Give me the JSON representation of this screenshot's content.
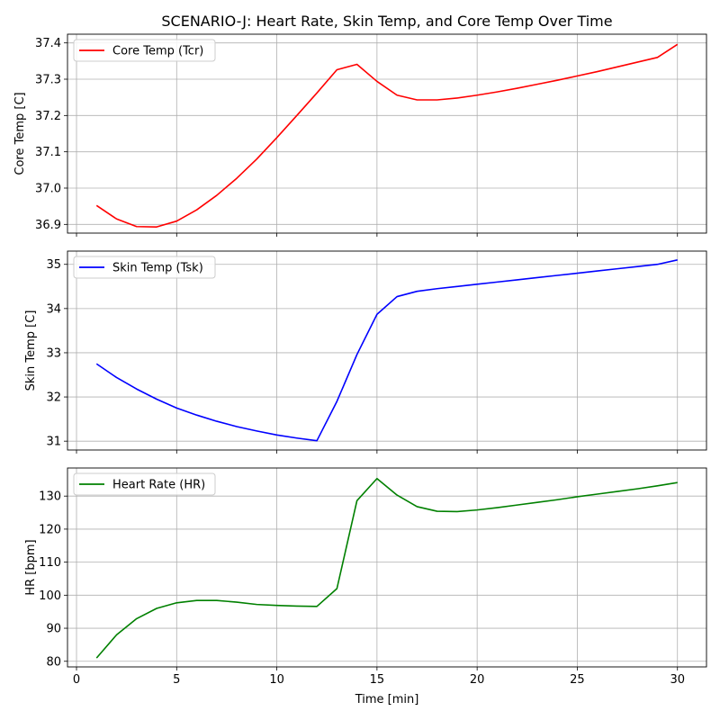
{
  "chart_data": {
    "type": "line",
    "title": "SCENARIO-J: Heart Rate, Skin Temp, and Core Temp Over Time",
    "xlabel": "Time [min]",
    "xlim": [
      -0.45,
      31.45
    ],
    "xticks": [
      0,
      5,
      10,
      15,
      20,
      25,
      30
    ],
    "grid": true,
    "panels": [
      {
        "ylabel": "Core Temp [C]",
        "ylim": [
          36.876,
          37.424
        ],
        "yticks": [
          36.9,
          37.0,
          37.1,
          37.2,
          37.3,
          37.4
        ],
        "ytick_labels": [
          "36.9",
          "37.0",
          "37.1",
          "37.2",
          "37.3",
          "37.4"
        ],
        "legend_position": "upper left",
        "series": [
          {
            "name": "Core Temp (Tcr)",
            "color": "#ff0000",
            "x": [
              1,
              2,
              3,
              4,
              5,
              6,
              7,
              8,
              9,
              10,
              11,
              12,
              13,
              14,
              15,
              16,
              17,
              18,
              19,
              20,
              21,
              22,
              23,
              24,
              25,
              26,
              27,
              28,
              29,
              30
            ],
            "y": [
              36.952,
              36.915,
              36.894,
              36.893,
              36.909,
              36.94,
              36.98,
              37.027,
              37.08,
              37.139,
              37.2,
              37.262,
              37.326,
              37.341,
              37.294,
              37.256,
              37.243,
              37.243,
              37.248,
              37.256,
              37.265,
              37.275,
              37.286,
              37.297,
              37.309,
              37.321,
              37.334,
              37.347,
              37.36,
              37.396
            ]
          }
        ]
      },
      {
        "ylabel": "Skin Temp [C]",
        "ylim": [
          30.8,
          35.3
        ],
        "yticks": [
          31,
          32,
          33,
          34,
          35
        ],
        "ytick_labels": [
          "31",
          "32",
          "33",
          "34",
          "35"
        ],
        "legend_position": "upper left",
        "series": [
          {
            "name": "Skin Temp (Tsk)",
            "color": "#0000ff",
            "x": [
              1,
              2,
              3,
              4,
              5,
              6,
              7,
              8,
              9,
              10,
              11,
              12,
              13,
              14,
              15,
              16,
              17,
              18,
              19,
              20,
              21,
              22,
              23,
              24,
              25,
              26,
              27,
              28,
              29,
              30
            ],
            "y": [
              32.75,
              32.44,
              32.18,
              31.95,
              31.75,
              31.59,
              31.45,
              31.33,
              31.23,
              31.14,
              31.07,
              31.01,
              31.9,
              32.96,
              33.87,
              34.27,
              34.39,
              34.45,
              34.5,
              34.55,
              34.6,
              34.65,
              34.7,
              34.75,
              34.8,
              34.85,
              34.9,
              34.95,
              35.0,
              35.1
            ]
          }
        ]
      },
      {
        "ylabel": "HR [bpm]",
        "ylim": [
          78.3,
          138.5
        ],
        "yticks": [
          80,
          90,
          100,
          110,
          120,
          130
        ],
        "ytick_labels": [
          "80",
          "90",
          "100",
          "110",
          "120",
          "130"
        ],
        "legend_position": "upper left",
        "series": [
          {
            "name": "Heart Rate (HR)",
            "color": "#008000",
            "x": [
              1,
              2,
              3,
              4,
              5,
              6,
              7,
              8,
              9,
              10,
              11,
              12,
              13,
              14,
              15,
              16,
              17,
              18,
              19,
              20,
              21,
              22,
              23,
              24,
              25,
              26,
              27,
              28,
              29,
              30
            ],
            "y": [
              81.0,
              88.0,
              92.9,
              96.0,
              97.7,
              98.4,
              98.4,
              97.9,
              97.2,
              96.9,
              96.7,
              96.6,
              102.0,
              128.6,
              135.3,
              130.3,
              126.8,
              125.4,
              125.3,
              125.8,
              126.5,
              127.3,
              128.1,
              128.9,
              129.8,
              130.6,
              131.4,
              132.2,
              133.1,
              134.1
            ]
          }
        ]
      }
    ]
  }
}
